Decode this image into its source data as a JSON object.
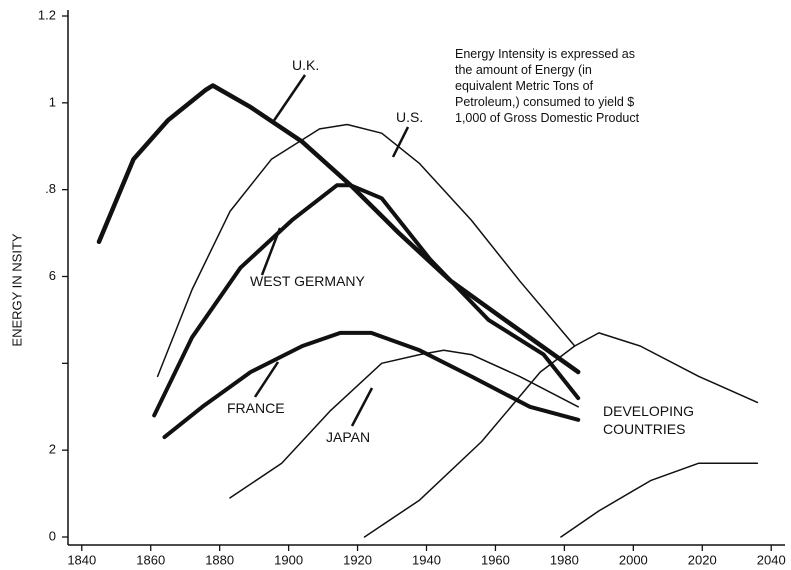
{
  "chart_data": {
    "type": "line",
    "y_label": "ENERGY IN   NSITY",
    "annotation": "Energy Intensity is expressed as the amount of Energy (in equivalent Metric Tons of Petroleum,) consumed to yield $ 1,000 of Gross Domestic Product",
    "xlim": [
      1836,
      2044
    ],
    "ylim": [
      0,
      1.2
    ],
    "xticks": [
      1840,
      1860,
      1880,
      1900,
      1920,
      1940,
      1960,
      1980,
      2000,
      2020,
      2040
    ],
    "yticks": [
      0,
      {
        "value": 0.2,
        "label": "2"
      },
      {
        "value": 0.4,
        "label": null
      },
      {
        "value": 0.6,
        "label": "6"
      },
      {
        "value": 0.8,
        "label": ".8"
      },
      1,
      1.2
    ],
    "series": [
      {
        "name": "U.K.",
        "color": "#111111",
        "x": [
          1845,
          1855,
          1865,
          1876,
          1878,
          1889,
          1904,
          1918,
          1932,
          1947,
          1961,
          1984
        ],
        "values": [
          0.68,
          0.87,
          0.96,
          1.03,
          1.04,
          0.99,
          0.91,
          0.81,
          0.7,
          0.59,
          0.51,
          0.38
        ]
      },
      {
        "name": "U.S.",
        "color": "#111111",
        "x": [
          1862,
          1872,
          1883,
          1895,
          1909,
          1917,
          1927,
          1938,
          1953,
          1967,
          1983
        ],
        "values": [
          0.37,
          0.57,
          0.75,
          0.87,
          0.94,
          0.95,
          0.93,
          0.86,
          0.73,
          0.59,
          0.44
        ]
      },
      {
        "name": "WEST GERMANY",
        "color": "#111111",
        "x": [
          1861,
          1872,
          1886,
          1901,
          1914,
          1918,
          1927,
          1941,
          1958,
          1974,
          1984
        ],
        "values": [
          0.28,
          0.46,
          0.62,
          0.73,
          0.81,
          0.81,
          0.78,
          0.64,
          0.5,
          0.42,
          0.32
        ]
      },
      {
        "name": "FRANCE",
        "color": "#111111",
        "x": [
          1864,
          1875,
          1889,
          1904,
          1915,
          1924,
          1938,
          1953,
          1970,
          1984
        ],
        "values": [
          0.23,
          0.3,
          0.38,
          0.44,
          0.47,
          0.47,
          0.43,
          0.37,
          0.3,
          0.27
        ]
      },
      {
        "name": "JAPAN",
        "color": "#111111",
        "x": [
          1883,
          1898,
          1912,
          1927,
          1938,
          1945,
          1953,
          1967,
          1984
        ],
        "values": [
          0.09,
          0.17,
          0.29,
          0.4,
          0.42,
          0.43,
          0.42,
          0.37,
          0.3
        ]
      },
      {
        "name": "DEVELOPING COUNTRIES",
        "color": "#111111",
        "x": [
          1922,
          1938,
          1956,
          1973,
          1983,
          1990,
          2002,
          2019,
          2036
        ],
        "values": [
          0,
          0.085,
          0.22,
          0.38,
          0.44,
          0.47,
          0.44,
          0.37,
          0.31
        ]
      },
      {
        "color": "#111111",
        "x": [
          1979,
          1990,
          2005,
          2019,
          2025,
          2036
        ],
        "values": [
          0,
          0.06,
          0.13,
          0.17,
          0.17,
          0.17
        ]
      }
    ]
  }
}
